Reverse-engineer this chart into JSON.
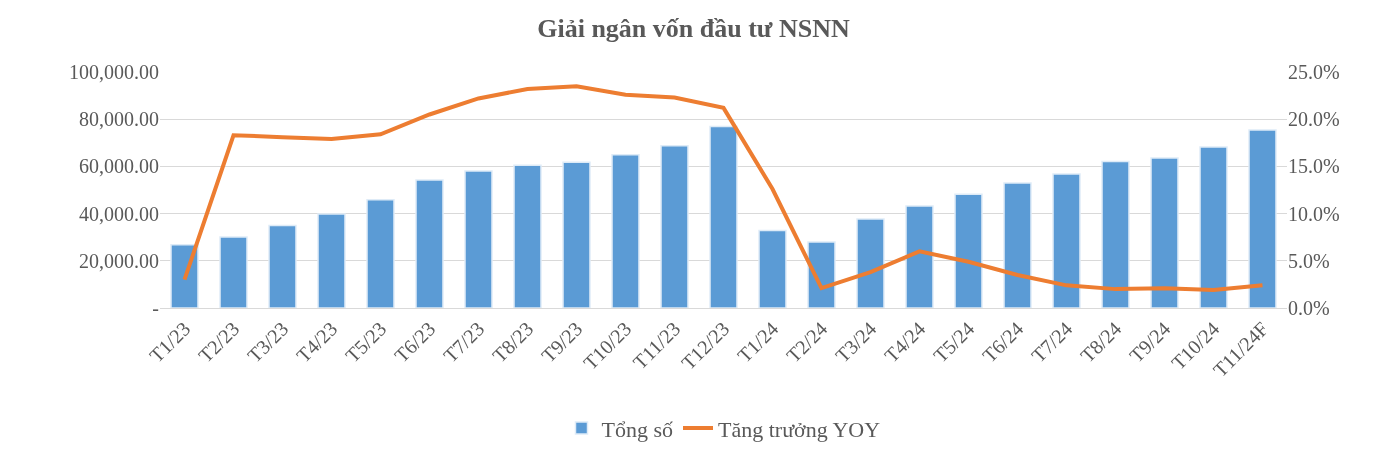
{
  "chart_data": {
    "type": "bar",
    "title": "Giải ngân vốn đầu tư NSNN",
    "categories": [
      "T1/23",
      "T2/23",
      "T3/23",
      "T4/23",
      "T5/23",
      "T6/23",
      "T7/23",
      "T8/23",
      "T9/23",
      "T10/23",
      "T11/23",
      "T12/23",
      "T1/24",
      "T2/24",
      "T3/24",
      "T4/24",
      "T5/24",
      "T6/24",
      "T7/24",
      "T8/24",
      "T9/24",
      "T10/24",
      "T11/24F"
    ],
    "series": [
      {
        "name": "Tổng số",
        "color": "#5b9bd5",
        "values": [
          26800,
          30100,
          35000,
          39800,
          45900,
          54200,
          58000,
          60500,
          61800,
          64900,
          68800,
          76900,
          32800,
          28000,
          37700,
          43200,
          48200,
          53000,
          56800,
          62100,
          63600,
          68200,
          75400
        ]
      },
      {
        "name": "Tăng trưởng YOY",
        "type": "line",
        "axis": "y2",
        "color": "#ed7d31",
        "marker": "none",
        "line_style": "solid",
        "values": [
          3.0,
          18.3,
          18.1,
          17.9,
          18.4,
          20.5,
          22.2,
          23.2,
          23.5,
          22.6,
          22.3,
          21.2,
          12.6,
          2.1,
          3.8,
          6.0,
          4.9,
          3.5,
          2.4,
          2.0,
          2.1,
          1.9,
          2.4
        ]
      }
    ],
    "ylim": [
      0,
      100000
    ],
    "yticks": [
      {
        "value": 0,
        "label": "-"
      },
      {
        "value": 20000,
        "label": "20,000.00"
      },
      {
        "value": 40000,
        "label": "40,000.00"
      },
      {
        "value": 60000,
        "label": "60,000.00"
      },
      {
        "value": 80000,
        "label": "80,000.00"
      },
      {
        "value": 100000,
        "label": "100,000.00"
      }
    ],
    "y2lim": [
      0,
      25
    ],
    "y2ticks": [
      {
        "value": 0,
        "label": "0.0%"
      },
      {
        "value": 5,
        "label": "5.0%"
      },
      {
        "value": 10,
        "label": "10.0%"
      },
      {
        "value": 15,
        "label": "15.0%"
      },
      {
        "value": 20,
        "label": "20.0%"
      },
      {
        "value": 25,
        "label": "25.0%"
      }
    ],
    "grid": "y",
    "legend": "bottom"
  }
}
